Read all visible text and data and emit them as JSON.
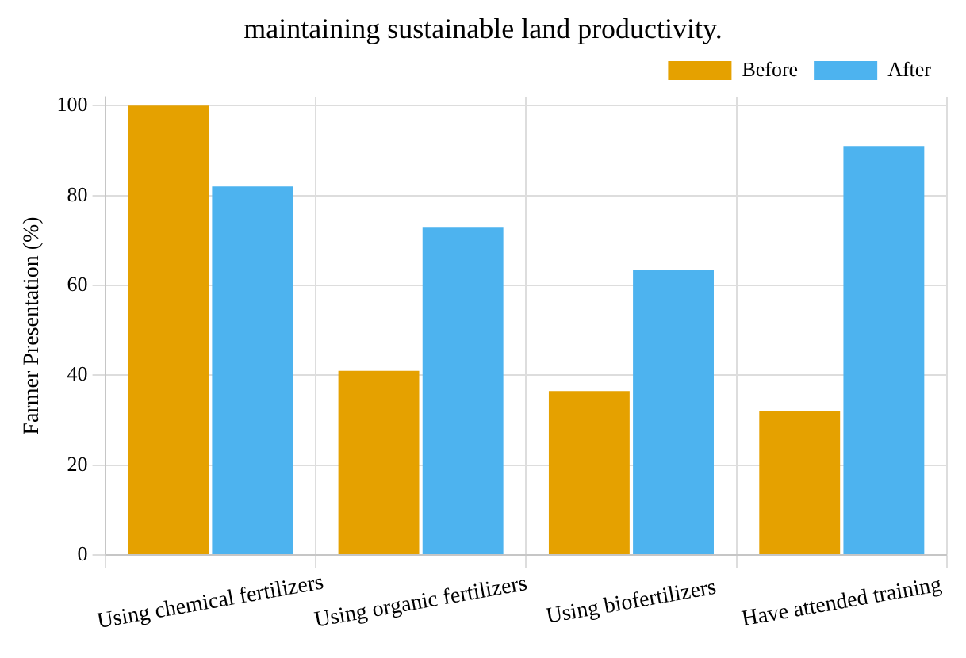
{
  "chart_data": {
    "type": "bar",
    "annotations": [
      "maintaining sustainable land productivity."
    ],
    "ylabel": "Farmer Presentation (%)",
    "categories": [
      "Using chemical fertilizers",
      "Using organic fertilizers",
      "Using biofertilizers",
      "Have attended training"
    ],
    "series": [
      {
        "name": "Before",
        "color": "#e5a100",
        "values": [
          100,
          41,
          36.5,
          32
        ]
      },
      {
        "name": "After",
        "color": "#4db3ef",
        "values": [
          82,
          73,
          63.5,
          91
        ]
      }
    ],
    "ylim": [
      0,
      102
    ],
    "yticks": [
      0,
      20,
      40,
      60,
      80,
      100
    ],
    "grid": true,
    "legend": "top right"
  }
}
